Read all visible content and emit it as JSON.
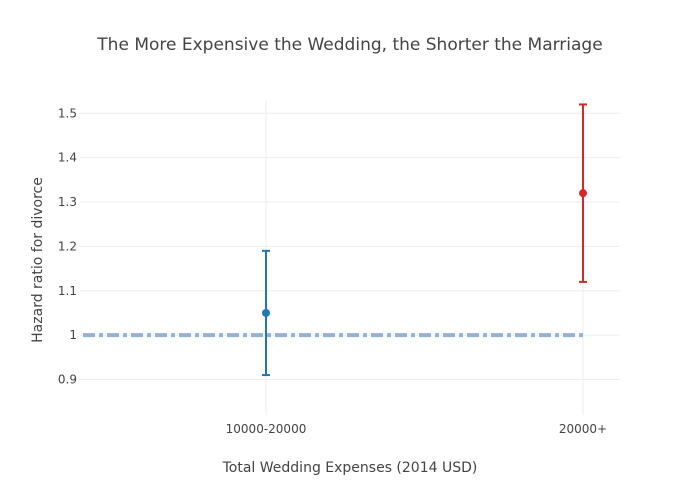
{
  "chart_data": {
    "type": "scatter",
    "title": "The More Expensive the Wedding, the Shorter the Marriage",
    "xlabel": "Total Wedding Expenses (2014 USD)",
    "ylabel": "Hazard ratio for divorce",
    "categories": [
      "10000-20000",
      "20000+"
    ],
    "yticks": [
      "0.9",
      "1",
      "1.1",
      "1.2",
      "1.3",
      "1.4",
      "1.5"
    ],
    "ytick_values": [
      0.9,
      1.0,
      1.1,
      1.2,
      1.3,
      1.4,
      1.5
    ],
    "ylim": [
      0.82,
      1.53
    ],
    "grid": true,
    "reference_line": {
      "y": 1.0,
      "style": "dash-dot",
      "color": "#94b4d6"
    },
    "points": [
      {
        "category": "10000-20000",
        "y": 1.05,
        "error_low": 0.91,
        "error_high": 1.19,
        "color": "#1f77b4"
      },
      {
        "category": "20000+",
        "y": 1.32,
        "error_low": 1.12,
        "error_high": 1.52,
        "color": "#d62728"
      }
    ]
  }
}
